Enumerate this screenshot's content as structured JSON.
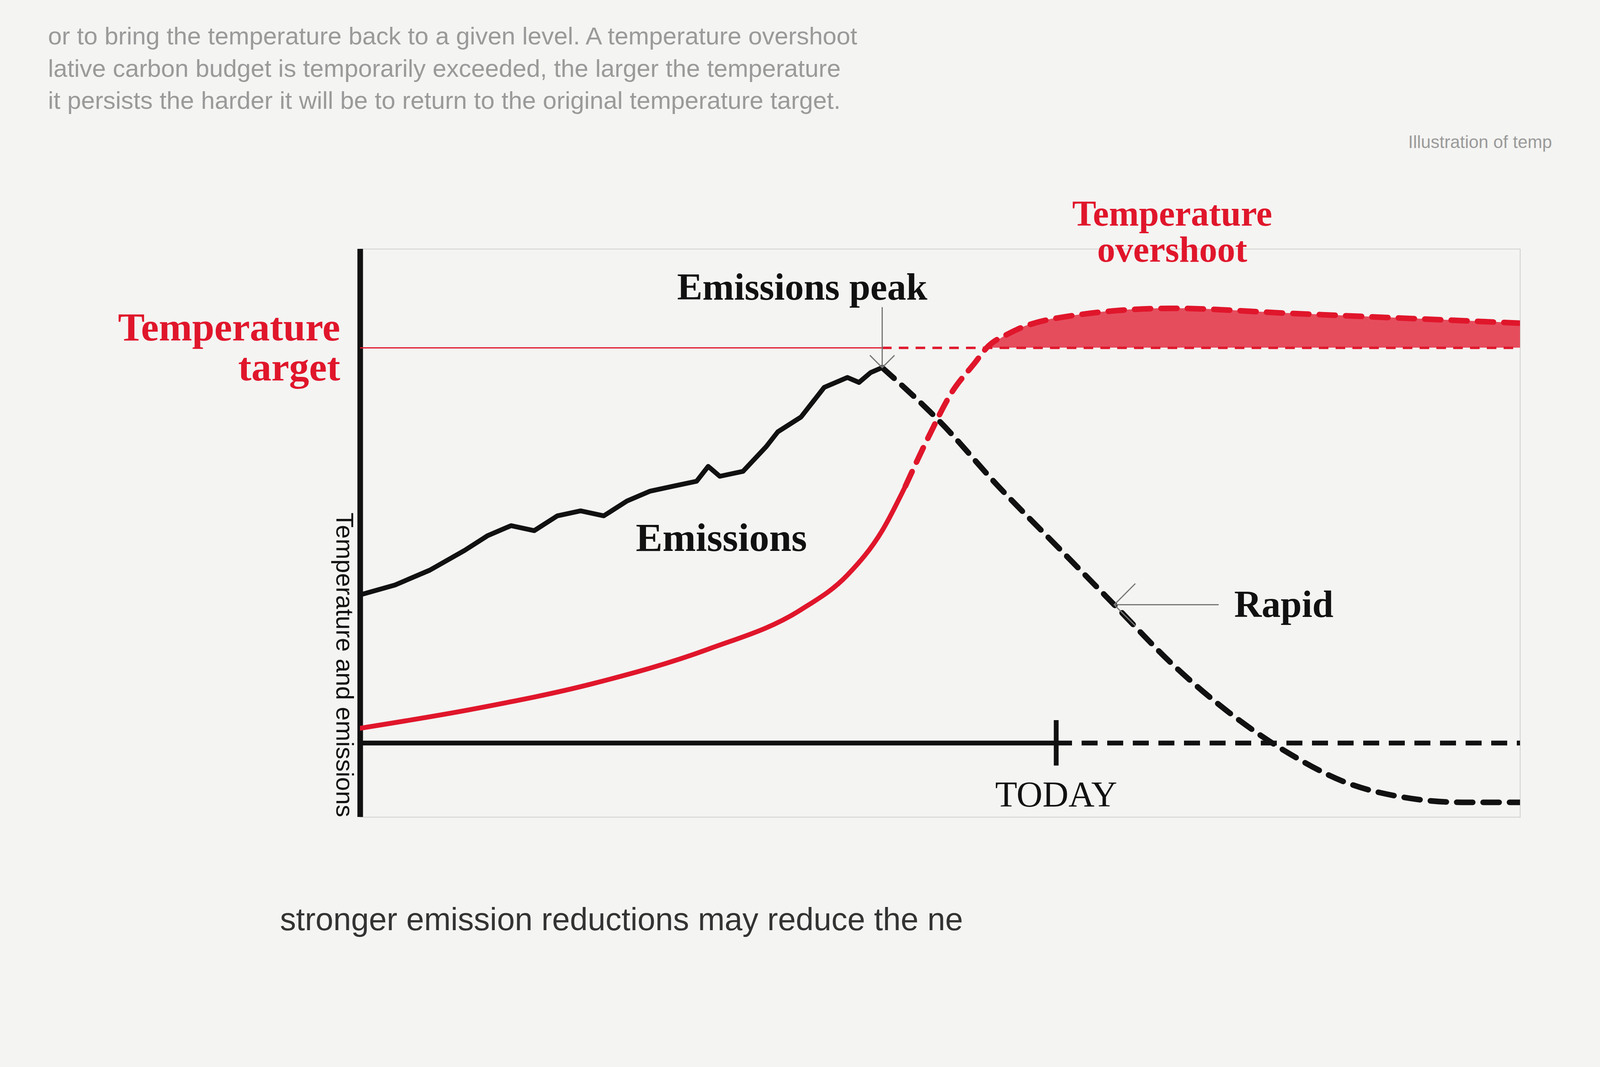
{
  "header_text": [
    "or to bring the temperature back to a given level. A temperature overshoot",
    "lative carbon budget is temporarily exceeded, the larger the temperature",
    "it persists the harder it will be to return to the original temperature target."
  ],
  "side_note": "Illustration of temp",
  "footer_text": "stronger emission reductions may reduce the ne",
  "chart_data": {
    "type": "line",
    "y_label": "Temperature and emissions",
    "xlim": [
      0,
      100
    ],
    "ylim": [
      -15,
      100
    ],
    "xticks": [
      {
        "value": 60,
        "label": "TODAY"
      }
    ],
    "yticks": [],
    "tick_labels": "x",
    "grid": false,
    "series": [
      {
        "name": "Emissions",
        "color": "#111111",
        "line_style": "solid",
        "x": [
          0,
          3,
          6,
          9,
          11,
          13,
          15,
          17,
          19,
          21,
          23,
          25,
          27,
          29,
          30,
          31,
          33,
          35,
          36,
          38,
          40,
          42,
          43,
          44,
          45
        ],
        "values": [
          30,
          32,
          35,
          39,
          42,
          44,
          43,
          46,
          47,
          46,
          49,
          51,
          52,
          53,
          56,
          54,
          55,
          60,
          63,
          66,
          72,
          74,
          73,
          75,
          76
        ]
      },
      {
        "color": "#111111",
        "line_style": "dashed",
        "x": [
          45,
          50,
          55,
          60,
          65,
          70,
          75,
          80,
          85,
          90,
          95,
          100
        ],
        "values": [
          76,
          65,
          52,
          40,
          28,
          16,
          6,
          -2,
          -8,
          -11,
          -12,
          -12
        ]
      },
      {
        "color": "#e0162b",
        "line_style": "solid",
        "x": [
          0,
          10,
          20,
          30,
          38,
          42,
          45,
          47
        ],
        "values": [
          3,
          7,
          12,
          19,
          27,
          34,
          43,
          52
        ]
      },
      {
        "color": "#e0162b",
        "line_style": "dashed",
        "x": [
          47,
          49,
          51,
          53,
          54,
          56,
          60,
          70,
          80,
          90,
          100
        ],
        "values": [
          52,
          62,
          71,
          77,
          80,
          83,
          86,
          88,
          87,
          86,
          85
        ]
      }
    ],
    "target": {
      "label": "Temperature target",
      "value": 80,
      "color": "#e0162b"
    },
    "overshoot": {
      "label": "Temperature overshoot",
      "color": "#e0162b"
    },
    "annotations": [
      {
        "text": "Emissions peak",
        "x": 45,
        "y": 76,
        "color": "#111111"
      },
      {
        "text": "Rapid",
        "x": 65,
        "y": 28,
        "color": "#111111"
      }
    ]
  }
}
